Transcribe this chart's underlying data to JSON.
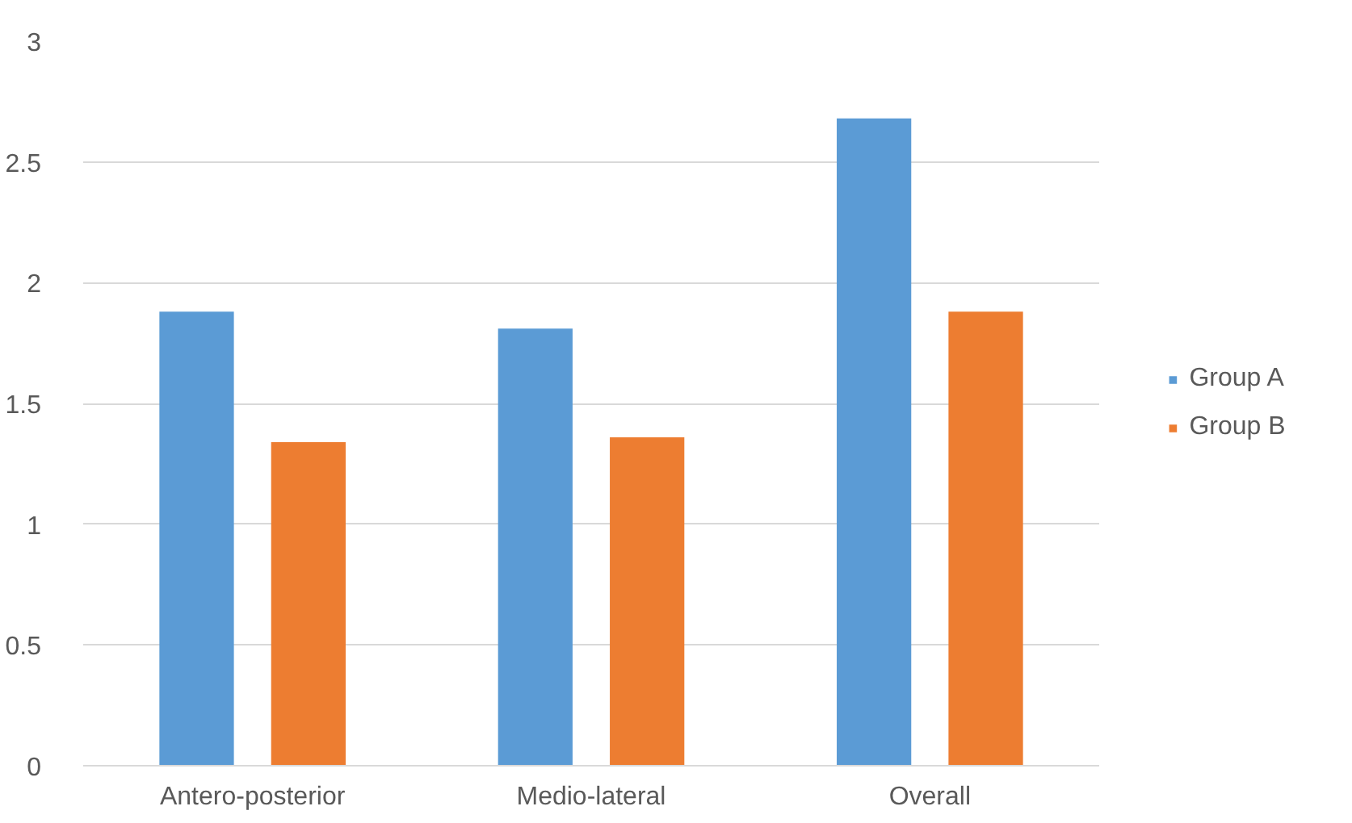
{
  "chart_data": {
    "type": "bar",
    "categories": [
      "Antero-posterior",
      "Medio-lateral",
      "Overall"
    ],
    "series": [
      {
        "name": "Group A",
        "color": "#5b9bd5",
        "values": [
          1.88,
          1.81,
          2.68
        ]
      },
      {
        "name": "Group B",
        "color": "#ed7d31",
        "values": [
          1.34,
          1.36,
          1.88
        ]
      }
    ],
    "ylim": [
      0,
      3
    ],
    "yticks": [
      0,
      0.5,
      1,
      1.5,
      2,
      2.5,
      3
    ],
    "grid": "y",
    "legend": "right"
  }
}
